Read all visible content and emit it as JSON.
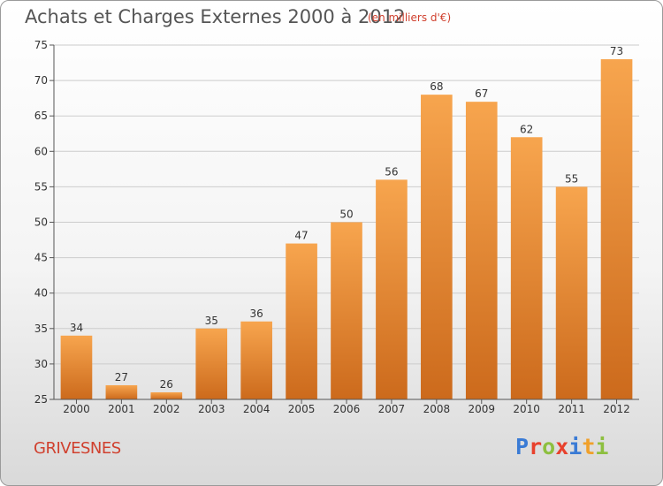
{
  "header": {
    "title": "Achats et Charges Externes 2000 à 2012",
    "subtitle": "(en milliers d'€)"
  },
  "footer": {
    "commune": "GRIVESNES",
    "logo": {
      "text": "Proxiti",
      "letters": [
        "P",
        "r",
        "o",
        "x",
        "i",
        "t",
        "i"
      ],
      "letter_colors": [
        "#3a7bd5",
        "#e8412c",
        "#8dbf3f",
        "#e8412c",
        "#3a7bd5",
        "#f0a02a",
        "#8dbf3f"
      ]
    }
  },
  "colors": {
    "bar_top": "#f7a54e",
    "bar_bottom": "#cc6a1c",
    "grid": "#cccccc",
    "axis": "#555555"
  },
  "chart_data": {
    "type": "bar",
    "title": "Achats et Charges Externes 2000 à 2012",
    "subtitle": "(en milliers d'€)",
    "xlabel": "",
    "ylabel": "",
    "categories": [
      "2000",
      "2001",
      "2002",
      "2003",
      "2004",
      "2005",
      "2006",
      "2007",
      "2008",
      "2009",
      "2010",
      "2011",
      "2012"
    ],
    "values": [
      34,
      27,
      26,
      35,
      36,
      47,
      50,
      56,
      68,
      67,
      62,
      55,
      73
    ],
    "ylim": [
      25,
      75
    ],
    "yticks": [
      25,
      30,
      35,
      40,
      45,
      50,
      55,
      60,
      65,
      70,
      75
    ],
    "grid": true,
    "data_labels": true
  }
}
